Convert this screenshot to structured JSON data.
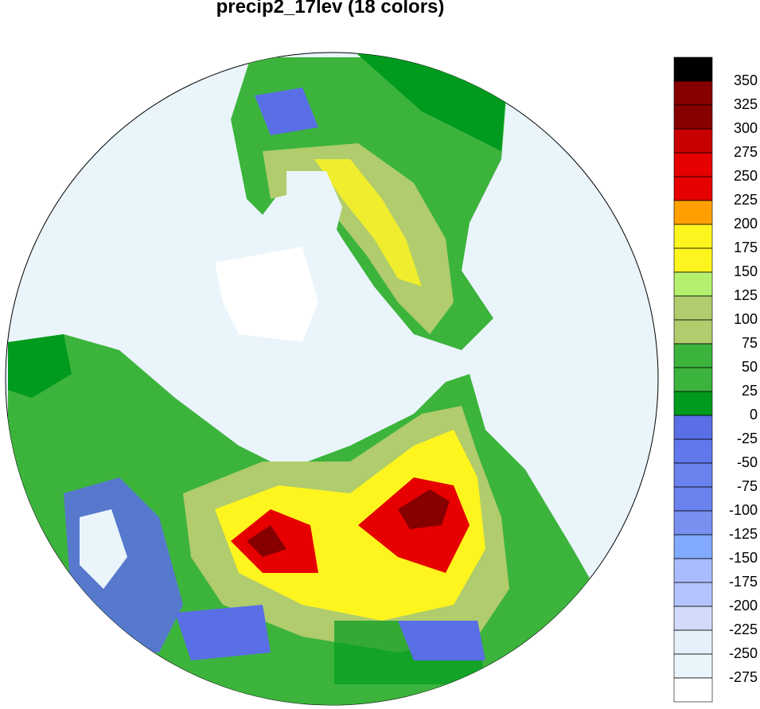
{
  "map": {
    "title": "precip2_17lev (18 colors)",
    "colorbar": {
      "levels": [
        350,
        325,
        300,
        275,
        250,
        225,
        200,
        175,
        150,
        125,
        100,
        75,
        50,
        25,
        0,
        -25,
        -50,
        -75,
        -100,
        -125,
        -150,
        -175,
        -200,
        -225,
        -250,
        -275
      ],
      "colors": [
        "#000000",
        "#870000",
        "#870000",
        "#c80000",
        "#e60000",
        "#e60000",
        "#ffa000",
        "#fff51e",
        "#fff51e",
        "#b4f06e",
        "#b0cc6c",
        "#b0cc6c",
        "#3cb43c",
        "#3cb43c",
        "#009b1e",
        "#5a6ee6",
        "#5f78eb",
        "#6a82ee",
        "#6a82ee",
        "#7890f0",
        "#82aaff",
        "#aabcff",
        "#b4c4ff",
        "#d2dcfa",
        "#e6f0fb",
        "#eaf4fb",
        "#ffffff"
      ]
    }
  }
}
